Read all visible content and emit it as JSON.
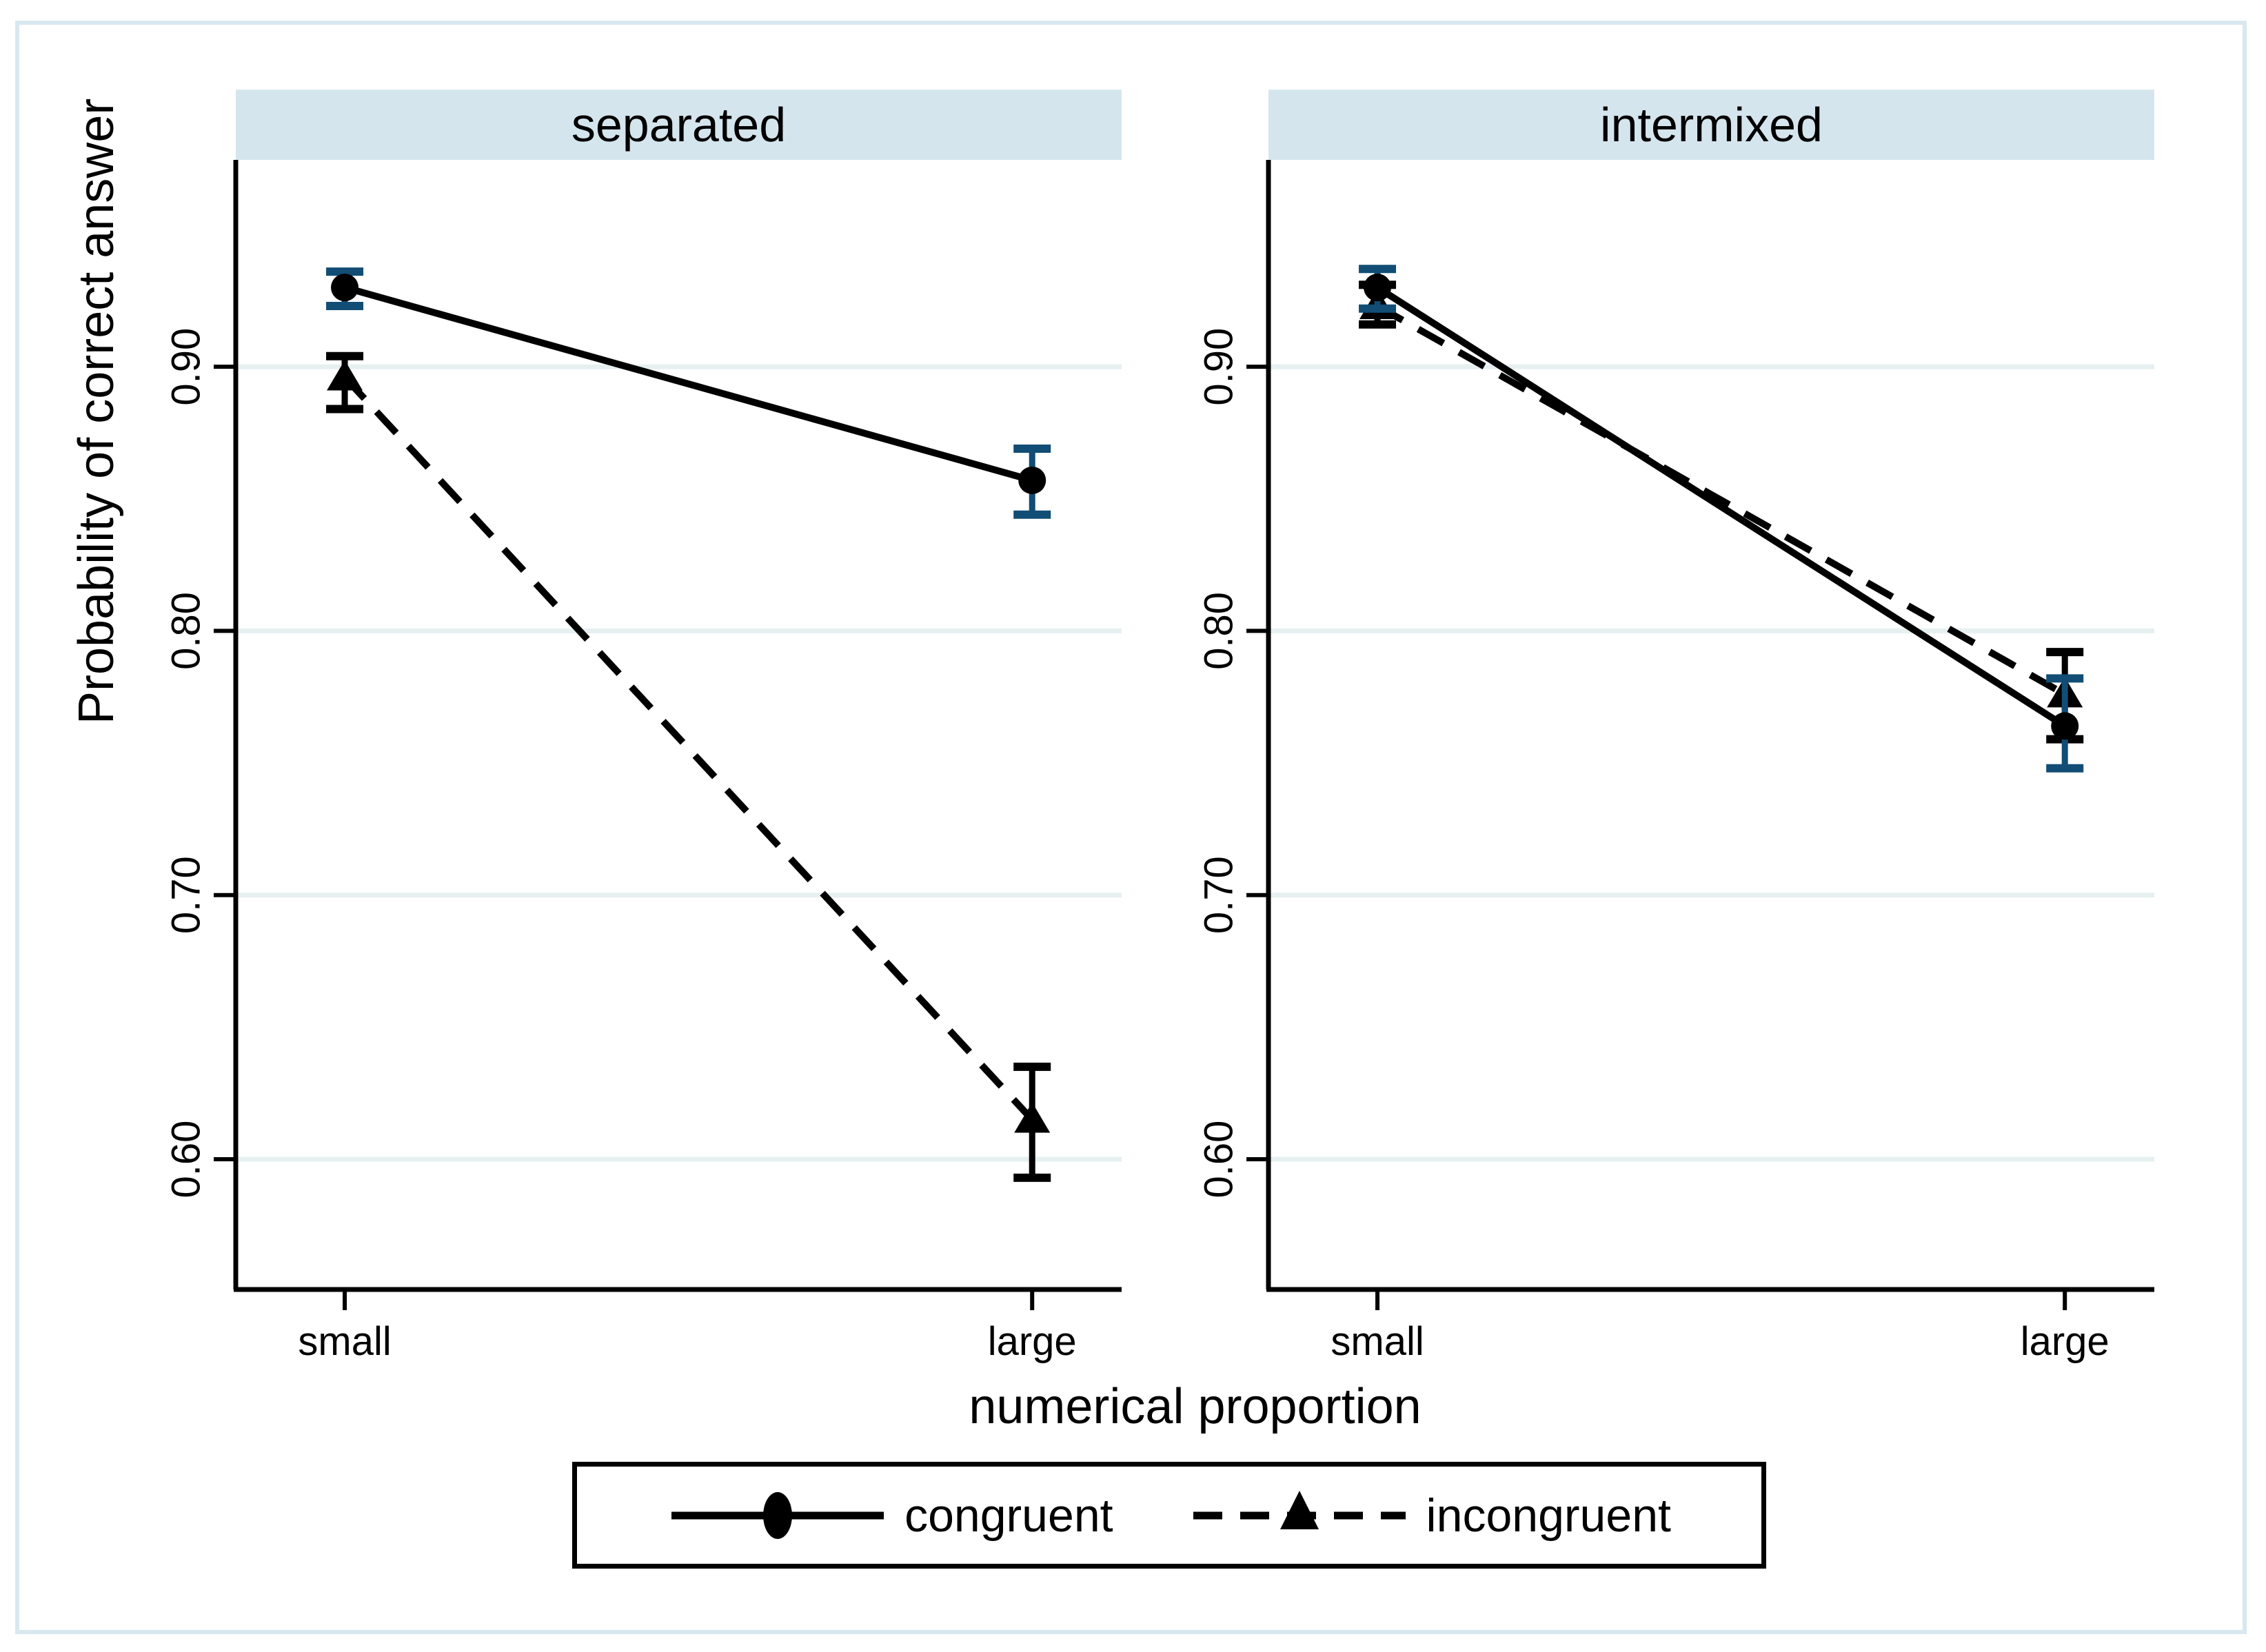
{
  "chart_data": {
    "type": "line",
    "title": "",
    "xlabel": "numerical proportion",
    "ylabel": "Probability of correct answer",
    "x_categories": [
      "small",
      "large"
    ],
    "yticks": [
      0.6,
      0.7,
      0.8,
      0.9
    ],
    "ytick_labels": [
      "0.60",
      "0.70",
      "0.80",
      "0.90"
    ],
    "ylim": [
      0.55,
      0.98
    ],
    "grid": "horizontal",
    "legend_position": "bottom",
    "panels": [
      {
        "label": "separated",
        "series": [
          {
            "name": "congruent",
            "marker": "circle",
            "line": "solid",
            "y": [
              0.93,
              0.857
            ],
            "ci_low": [
              0.923,
              0.844
            ],
            "ci_high": [
              0.936,
              0.869
            ]
          },
          {
            "name": "incongruent",
            "marker": "triangle",
            "line": "dashed",
            "y": [
              0.896,
              0.615
            ],
            "ci_low": [
              0.884,
              0.593
            ],
            "ci_high": [
              0.904,
              0.635
            ]
          }
        ]
      },
      {
        "label": "intermixed",
        "series": [
          {
            "name": "congruent",
            "marker": "circle",
            "line": "solid",
            "y": [
              0.93,
              0.764
            ],
            "ci_low": [
              0.922,
              0.748
            ],
            "ci_high": [
              0.937,
              0.782
            ]
          },
          {
            "name": "incongruent",
            "marker": "triangle",
            "line": "dashed",
            "y": [
              0.923,
              0.776
            ],
            "ci_low": [
              0.916,
              0.759
            ],
            "ci_high": [
              0.931,
              0.792
            ]
          }
        ]
      }
    ],
    "legend": [
      {
        "label": "congruent",
        "marker": "circle",
        "line": "solid"
      },
      {
        "label": "incongruent",
        "marker": "triangle",
        "line": "dashed"
      }
    ],
    "colors": {
      "series_line": "#000000",
      "congruent_error_bar": "#124d75",
      "incongruent_error_bar": "#000000",
      "panel_header_bg": "#d5e5ed",
      "gridline": "#e6f0f1",
      "figure_border": "#d9e8ef"
    }
  }
}
